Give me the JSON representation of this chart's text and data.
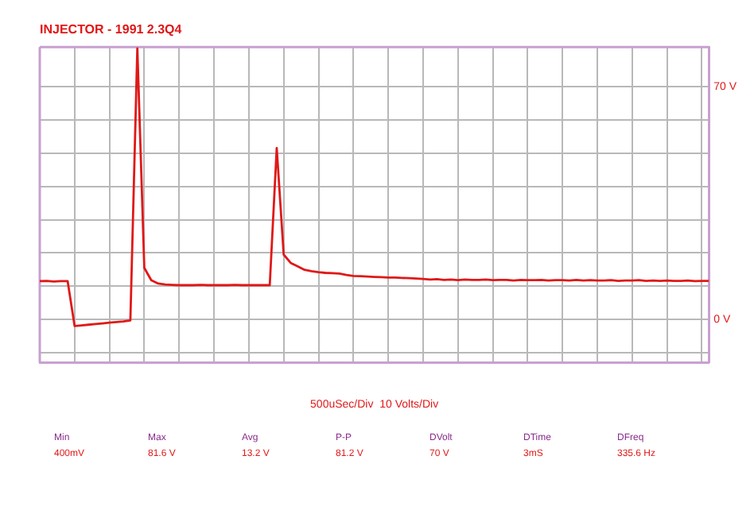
{
  "chart_data": {
    "type": "line",
    "title": "INJECTOR - 1991 2.3Q4",
    "xlabel": "500uSec/Div  10 Volts/Div",
    "categories": [
      null,
      null,
      null,
      null,
      null,
      null,
      null,
      null,
      null,
      null,
      null,
      null,
      null,
      null,
      null,
      null,
      null,
      null,
      null,
      null,
      null,
      null,
      null,
      null,
      null,
      null,
      null,
      null,
      null,
      null,
      null,
      null,
      null,
      null,
      null,
      null,
      null,
      null,
      null,
      null,
      null,
      null,
      null,
      null,
      null,
      null,
      null,
      null,
      null,
      null,
      null,
      null,
      null,
      null,
      null,
      null,
      null,
      null,
      null,
      null,
      null,
      null,
      null,
      null,
      null,
      null,
      null,
      null,
      null,
      null,
      null,
      null,
      null,
      null,
      null,
      null,
      null,
      null,
      null,
      null,
      null,
      null,
      null,
      null,
      null,
      null,
      null,
      null,
      null,
      null,
      null,
      null,
      null,
      null,
      null,
      null,
      null
    ],
    "series": [
      {
        "color": "#e01818",
        "values": [
          11.5,
          11.6,
          11.4,
          11.5,
          11.5,
          -2.0,
          -1.8,
          -1.6,
          -1.4,
          -1.2,
          -1.0,
          -0.8,
          -0.6,
          -0.3,
          81.6,
          15.5,
          11.8,
          10.8,
          10.5,
          10.4,
          10.3,
          10.3,
          10.3,
          10.4,
          10.3,
          10.3,
          10.3,
          10.3,
          10.4,
          10.3,
          10.3,
          10.3,
          10.3,
          10.3,
          51.6,
          19.5,
          17.0,
          16.0,
          14.9,
          14.5,
          14.2,
          14.0,
          13.9,
          13.8,
          13.4,
          13.1,
          13.0,
          12.9,
          12.8,
          12.7,
          12.6,
          12.6,
          12.5,
          12.4,
          12.3,
          12.2,
          12.0,
          12.1,
          11.9,
          12.0,
          11.8,
          12.0,
          11.9,
          11.9,
          12.0,
          11.8,
          11.9,
          11.9,
          11.7,
          11.9,
          11.8,
          11.8,
          11.9,
          11.7,
          11.8,
          11.8,
          11.7,
          11.9,
          11.7,
          11.8,
          11.7,
          11.7,
          11.8,
          11.6,
          11.7,
          11.7,
          11.8,
          11.6,
          11.7,
          11.6,
          11.7,
          11.6,
          11.6,
          11.7,
          11.5,
          11.6,
          11.6
        ]
      }
    ],
    "ylim": [
      -13,
      82
    ],
    "yticks": [
      {
        "value": -10,
        "label": null
      },
      {
        "value": 0,
        "label": "0 V"
      },
      {
        "value": 10,
        "label": null
      },
      {
        "value": 20,
        "label": null
      },
      {
        "value": 30,
        "label": null
      },
      {
        "value": 40,
        "label": null
      },
      {
        "value": 50,
        "label": null
      },
      {
        "value": 60,
        "label": null
      },
      {
        "value": 70,
        "label": "70 V"
      }
    ],
    "grid": true,
    "legend": false,
    "marker": "none",
    "line_style": "solid",
    "annotations": [
      "Min",
      "400mV",
      "Max",
      "81.6 V",
      "Avg",
      "13.2 V",
      "P-P",
      "81.2 V",
      "DVolt",
      "70 V",
      "DTime",
      "3mS",
      "DFreq",
      "335.6 Hz"
    ]
  }
}
